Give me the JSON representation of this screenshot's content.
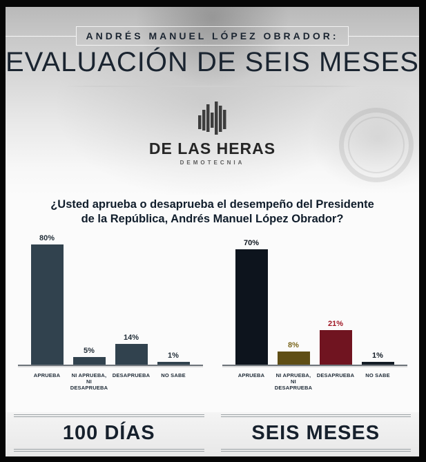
{
  "header": {
    "kicker": "ANDRÉS MANUEL LÓPEZ OBRADOR:",
    "title": "EVALUACIÓN DE SEIS MESES"
  },
  "logo": {
    "name": "DE LAS HERAS",
    "subtitle": "DEMOTECNIA",
    "mark": "bars-monogram-icon",
    "mark_color": "#3d3d3d"
  },
  "question": "¿Usted aprueba o desaprueba el desempeño del Presidente\nde la República, Andrés Manuel López Obrador?",
  "chart_data": [
    {
      "type": "bar",
      "title": "100 DÍAS",
      "categories": [
        "APRUEBA",
        "NI APRUEBA,\nNI DESAPRUEBA",
        "DESAPRUEBA",
        "NO SABE"
      ],
      "values": [
        80,
        5,
        14,
        1
      ],
      "value_labels": [
        "80%",
        "5%",
        "14%",
        "1%"
      ],
      "unit": "%",
      "bar_colors": [
        "#31424e",
        "#31424e",
        "#31424e",
        "#31424e"
      ],
      "value_label_colors": [
        "#232f39",
        "#232f39",
        "#232f39",
        "#232f39"
      ],
      "ylim": [
        0,
        85
      ],
      "grid": false,
      "legend": "none",
      "value_labels_position": "above-bars"
    },
    {
      "type": "bar",
      "title": "SEIS MESES",
      "categories": [
        "APRUEBA",
        "NI APRUEBA,\nNI DESAPRUEBA",
        "DESAPRUEBA",
        "NO SABE"
      ],
      "values": [
        70,
        8,
        21,
        1
      ],
      "value_labels": [
        "70%",
        "8%",
        "21%",
        "1%"
      ],
      "unit": "%",
      "bar_colors": [
        "#0d141d",
        "#5f4e15",
        "#701420",
        "#131c26"
      ],
      "value_label_colors": [
        "#0d141d",
        "#7a661c",
        "#a01724",
        "#131c26"
      ],
      "ylim": [
        0,
        85
      ],
      "grid": false,
      "legend": "none",
      "value_labels_position": "above-bars"
    }
  ],
  "colors": {
    "frame": "#060606",
    "ink": "#16222e",
    "axis_line": "#6d747a",
    "band_line": "#9aa0a4"
  }
}
